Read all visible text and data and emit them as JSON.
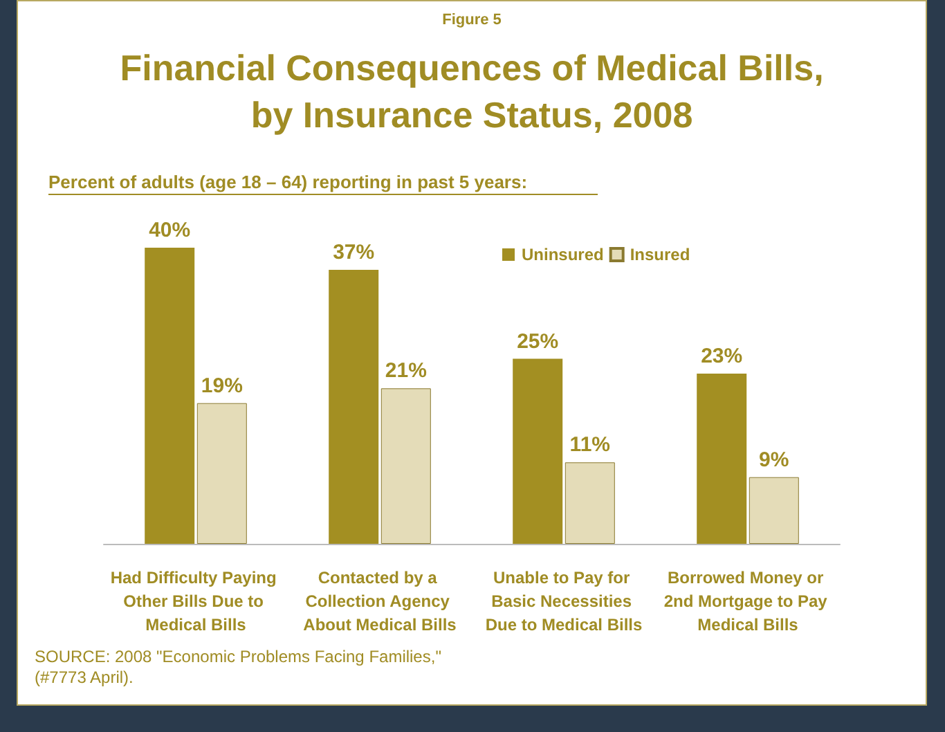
{
  "chart_data": {
    "type": "bar",
    "title": "Financial Consequences of Medical Bills,\nby Insurance Status, 2008",
    "subtitle": "Percent of adults (age 18 – 64) reporting in past 5 years:",
    "annotations": [
      "Figure 5",
      "SOURCE: 2008 \"Economic Problems Facing Families,\" (#7773 April)."
    ],
    "categories": [
      "Had Difficulty Paying Other Bills Due to Medical Bills",
      "Contacted by a Collection Agency About Medical Bills",
      "Unable to Pay for Basic Necessities Due to Medical Bills",
      "Borrowed Money or 2nd Mortgage to Pay Medical Bills"
    ],
    "series": [
      {
        "name": "Uninsured",
        "color": "#a38f22",
        "values": [
          40,
          37,
          25,
          23
        ],
        "value_labels": [
          "40%",
          "37%",
          "25%",
          "23%"
        ]
      },
      {
        "name": "Insured",
        "color": "#e4dcb8",
        "values": [
          19,
          21,
          11,
          9
        ],
        "value_labels": [
          "19%",
          "21%",
          "11%",
          "9%"
        ]
      }
    ],
    "legend": "top right"
  }
}
